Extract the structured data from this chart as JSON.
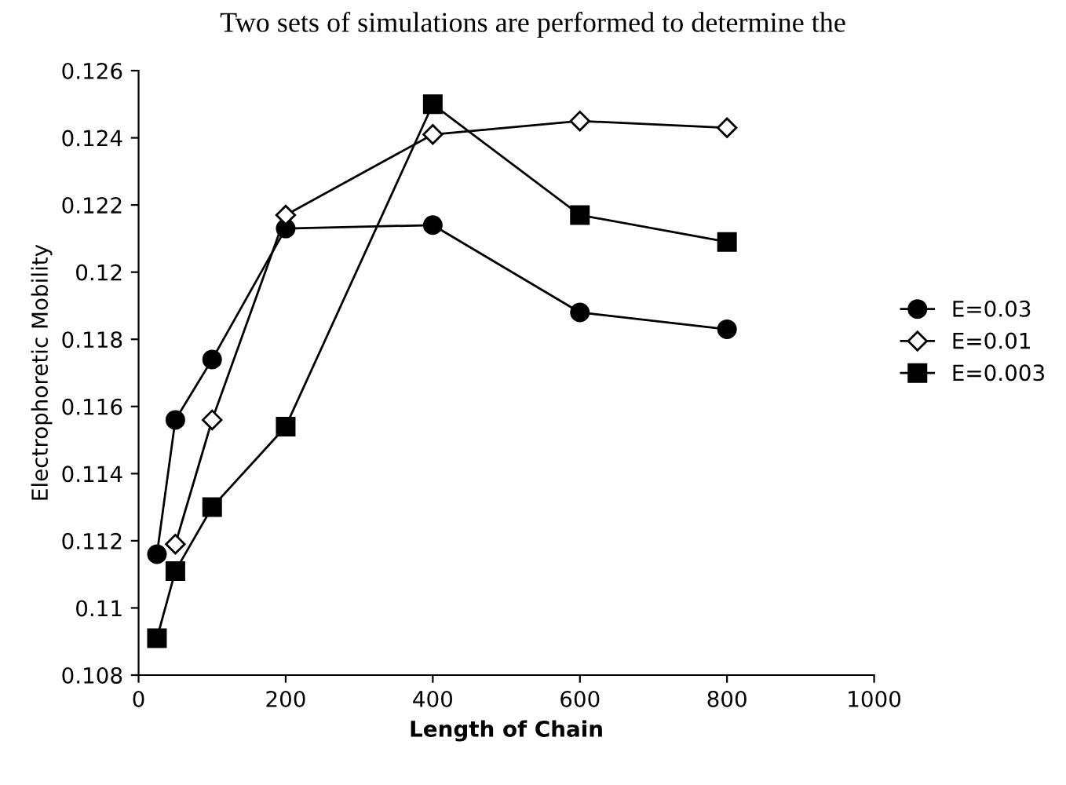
{
  "chart_data": {
    "type": "line",
    "annotations": [
      "Two sets of simulations are performed to determine the"
    ],
    "xlabel": "Length of Chain",
    "ylabel": "Electrophoretic Mobility",
    "xlim": [
      0,
      1000
    ],
    "xticks": [
      0,
      200,
      400,
      600,
      800,
      1000
    ],
    "ylim": [
      0.108,
      0.126
    ],
    "yticks": [
      0.108,
      0.11,
      0.112,
      0.114,
      0.116,
      0.118,
      0.12,
      0.122,
      0.124,
      0.126
    ],
    "grid": false,
    "legend": "right",
    "series": [
      {
        "name": "E=0.03",
        "color": "#000000",
        "marker": "circle",
        "x": [
          25,
          50,
          100,
          200,
          400,
          600,
          800
        ],
        "values": [
          0.1116,
          0.1156,
          0.1174,
          0.1213,
          0.1214,
          0.1188,
          0.1183
        ]
      },
      {
        "name": "E=0.01",
        "color": "#000000",
        "marker": "diamond",
        "x": [
          50,
          100,
          200,
          400,
          600,
          800
        ],
        "values": [
          0.1119,
          0.1156,
          0.1217,
          0.1241,
          0.1245,
          0.1243
        ]
      },
      {
        "name": "E=0.003",
        "color": "#000000",
        "marker": "square",
        "x": [
          25,
          50,
          100,
          200,
          400,
          600,
          800
        ],
        "values": [
          0.1091,
          0.1111,
          0.113,
          0.1154,
          0.125,
          0.1217,
          0.1209
        ]
      }
    ]
  }
}
